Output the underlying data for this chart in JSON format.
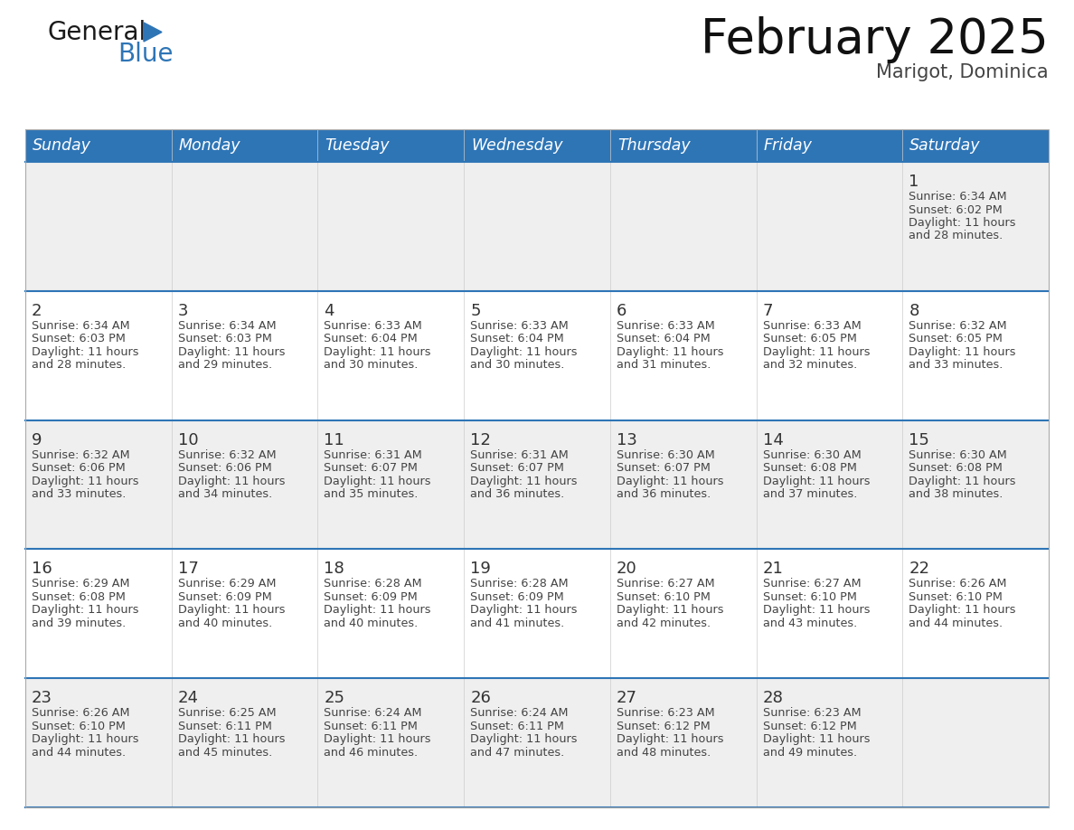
{
  "title": "February 2025",
  "subtitle": "Marigot, Dominica",
  "header_bg": "#2E75B6",
  "header_text_color": "#FFFFFF",
  "day_headers": [
    "Sunday",
    "Monday",
    "Tuesday",
    "Wednesday",
    "Thursday",
    "Friday",
    "Saturday"
  ],
  "row_bg_even": "#EFEFEF",
  "row_bg_odd": "#FFFFFF",
  "divider_color": "#2E75B6",
  "title_color": "#111111",
  "subtitle_color": "#444444",
  "day_num_color": "#333333",
  "info_color": "#444444",
  "calendar": [
    [
      {
        "day": "",
        "sunrise": "",
        "sunset": "",
        "daylight_h": "",
        "daylight_m": ""
      },
      {
        "day": "",
        "sunrise": "",
        "sunset": "",
        "daylight_h": "",
        "daylight_m": ""
      },
      {
        "day": "",
        "sunrise": "",
        "sunset": "",
        "daylight_h": "",
        "daylight_m": ""
      },
      {
        "day": "",
        "sunrise": "",
        "sunset": "",
        "daylight_h": "",
        "daylight_m": ""
      },
      {
        "day": "",
        "sunrise": "",
        "sunset": "",
        "daylight_h": "",
        "daylight_m": ""
      },
      {
        "day": "",
        "sunrise": "",
        "sunset": "",
        "daylight_h": "",
        "daylight_m": ""
      },
      {
        "day": "1",
        "sunrise": "6:34 AM",
        "sunset": "6:02 PM",
        "daylight_h": "11 hours",
        "daylight_m": "28 minutes."
      }
    ],
    [
      {
        "day": "2",
        "sunrise": "6:34 AM",
        "sunset": "6:03 PM",
        "daylight_h": "11 hours",
        "daylight_m": "28 minutes."
      },
      {
        "day": "3",
        "sunrise": "6:34 AM",
        "sunset": "6:03 PM",
        "daylight_h": "11 hours",
        "daylight_m": "29 minutes."
      },
      {
        "day": "4",
        "sunrise": "6:33 AM",
        "sunset": "6:04 PM",
        "daylight_h": "11 hours",
        "daylight_m": "30 minutes."
      },
      {
        "day": "5",
        "sunrise": "6:33 AM",
        "sunset": "6:04 PM",
        "daylight_h": "11 hours",
        "daylight_m": "30 minutes."
      },
      {
        "day": "6",
        "sunrise": "6:33 AM",
        "sunset": "6:04 PM",
        "daylight_h": "11 hours",
        "daylight_m": "31 minutes."
      },
      {
        "day": "7",
        "sunrise": "6:33 AM",
        "sunset": "6:05 PM",
        "daylight_h": "11 hours",
        "daylight_m": "32 minutes."
      },
      {
        "day": "8",
        "sunrise": "6:32 AM",
        "sunset": "6:05 PM",
        "daylight_h": "11 hours",
        "daylight_m": "33 minutes."
      }
    ],
    [
      {
        "day": "9",
        "sunrise": "6:32 AM",
        "sunset": "6:06 PM",
        "daylight_h": "11 hours",
        "daylight_m": "33 minutes."
      },
      {
        "day": "10",
        "sunrise": "6:32 AM",
        "sunset": "6:06 PM",
        "daylight_h": "11 hours",
        "daylight_m": "34 minutes."
      },
      {
        "day": "11",
        "sunrise": "6:31 AM",
        "sunset": "6:07 PM",
        "daylight_h": "11 hours",
        "daylight_m": "35 minutes."
      },
      {
        "day": "12",
        "sunrise": "6:31 AM",
        "sunset": "6:07 PM",
        "daylight_h": "11 hours",
        "daylight_m": "36 minutes."
      },
      {
        "day": "13",
        "sunrise": "6:30 AM",
        "sunset": "6:07 PM",
        "daylight_h": "11 hours",
        "daylight_m": "36 minutes."
      },
      {
        "day": "14",
        "sunrise": "6:30 AM",
        "sunset": "6:08 PM",
        "daylight_h": "11 hours",
        "daylight_m": "37 minutes."
      },
      {
        "day": "15",
        "sunrise": "6:30 AM",
        "sunset": "6:08 PM",
        "daylight_h": "11 hours",
        "daylight_m": "38 minutes."
      }
    ],
    [
      {
        "day": "16",
        "sunrise": "6:29 AM",
        "sunset": "6:08 PM",
        "daylight_h": "11 hours",
        "daylight_m": "39 minutes."
      },
      {
        "day": "17",
        "sunrise": "6:29 AM",
        "sunset": "6:09 PM",
        "daylight_h": "11 hours",
        "daylight_m": "40 minutes."
      },
      {
        "day": "18",
        "sunrise": "6:28 AM",
        "sunset": "6:09 PM",
        "daylight_h": "11 hours",
        "daylight_m": "40 minutes."
      },
      {
        "day": "19",
        "sunrise": "6:28 AM",
        "sunset": "6:09 PM",
        "daylight_h": "11 hours",
        "daylight_m": "41 minutes."
      },
      {
        "day": "20",
        "sunrise": "6:27 AM",
        "sunset": "6:10 PM",
        "daylight_h": "11 hours",
        "daylight_m": "42 minutes."
      },
      {
        "day": "21",
        "sunrise": "6:27 AM",
        "sunset": "6:10 PM",
        "daylight_h": "11 hours",
        "daylight_m": "43 minutes."
      },
      {
        "day": "22",
        "sunrise": "6:26 AM",
        "sunset": "6:10 PM",
        "daylight_h": "11 hours",
        "daylight_m": "44 minutes."
      }
    ],
    [
      {
        "day": "23",
        "sunrise": "6:26 AM",
        "sunset": "6:10 PM",
        "daylight_h": "11 hours",
        "daylight_m": "44 minutes."
      },
      {
        "day": "24",
        "sunrise": "6:25 AM",
        "sunset": "6:11 PM",
        "daylight_h": "11 hours",
        "daylight_m": "45 minutes."
      },
      {
        "day": "25",
        "sunrise": "6:24 AM",
        "sunset": "6:11 PM",
        "daylight_h": "11 hours",
        "daylight_m": "46 minutes."
      },
      {
        "day": "26",
        "sunrise": "6:24 AM",
        "sunset": "6:11 PM",
        "daylight_h": "11 hours",
        "daylight_m": "47 minutes."
      },
      {
        "day": "27",
        "sunrise": "6:23 AM",
        "sunset": "6:12 PM",
        "daylight_h": "11 hours",
        "daylight_m": "48 minutes."
      },
      {
        "day": "28",
        "sunrise": "6:23 AM",
        "sunset": "6:12 PM",
        "daylight_h": "11 hours",
        "daylight_m": "49 minutes."
      },
      {
        "day": "",
        "sunrise": "",
        "sunset": "",
        "daylight_h": "",
        "daylight_m": ""
      }
    ]
  ],
  "logo_text_general": "General",
  "logo_text_blue": "Blue",
  "logo_color_general": "#1A1A1A",
  "logo_color_blue": "#2E75B6",
  "logo_triangle_color": "#2E75B6"
}
